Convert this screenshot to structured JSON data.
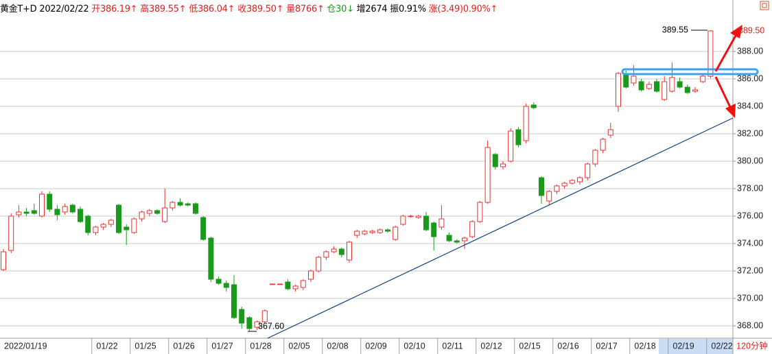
{
  "chart_data": {
    "type": "candlestick",
    "header": [
      {
        "text": "黄金T+D",
        "color": "#000000"
      },
      {
        "text": "2022/02/22",
        "color": "#000000"
      },
      {
        "text": "开386.19↑",
        "color": "#e0201c"
      },
      {
        "text": "高389.55↑",
        "color": "#e0201c"
      },
      {
        "text": "低386.04↑",
        "color": "#e0201c"
      },
      {
        "text": "收389.50↑",
        "color": "#e0201c"
      },
      {
        "text": "量8766↑",
        "color": "#e0201c"
      },
      {
        "text": "仓30↓",
        "color": "#1a9a1a"
      },
      {
        "text": "增2674",
        "color": "#000000"
      },
      {
        "text": "振0.91%",
        "color": "#000000"
      },
      {
        "text": "涨(3.49)0.90%↑",
        "color": "#e0201c"
      }
    ],
    "period": "120分钟",
    "categories": [
      "2022/01/19",
      null,
      null,
      null,
      null,
      null,
      null,
      null,
      null,
      null,
      null,
      null,
      "01/22",
      null,
      null,
      null,
      null,
      "01/25",
      null,
      null,
      null,
      null,
      "01/26",
      null,
      null,
      null,
      null,
      "01/27",
      null,
      null,
      null,
      null,
      "01/28",
      null,
      null,
      null,
      null,
      "02/05",
      null,
      null,
      null,
      null,
      "02/08",
      null,
      null,
      null,
      null,
      "02/09",
      null,
      null,
      null,
      null,
      "02/10",
      null,
      null,
      null,
      null,
      "02/11",
      null,
      null,
      null,
      null,
      "02/12",
      null,
      null,
      null,
      null,
      "02/15",
      null,
      null,
      null,
      null,
      "02/16",
      null,
      null,
      null,
      null,
      "02/17",
      null,
      null,
      null,
      null,
      "02/18",
      null,
      null,
      null,
      null,
      "02/19",
      null,
      null,
      null,
      null,
      "02/22"
    ],
    "open": [
      372.1,
      373.5,
      376.1,
      376.3,
      376.4,
      376.0,
      377.6,
      376.5,
      376.3,
      376.8,
      376.5,
      376.0,
      374.8,
      375.2,
      375.4,
      376.8,
      375.2,
      374.8,
      375.8,
      376.2,
      376.4,
      375.6,
      376.6,
      377.0,
      376.9,
      376.9,
      375.9,
      374.4,
      371.4,
      371.1,
      371.0,
      369.2,
      368.6,
      367.9,
      368.3,
      371.05,
      371.05,
      371.2,
      370.7,
      370.8,
      371.4,
      372.0,
      373.0,
      373.4,
      373.6,
      372.8,
      374.6,
      374.7,
      374.8,
      374.8,
      375.0,
      374.3,
      375.4,
      376.0,
      375.9,
      376.0,
      375.5,
      375.2,
      374.6,
      374.2,
      374.2,
      374.5,
      375.6,
      377.0,
      380.5,
      379.6,
      380.0,
      382.3,
      381.5,
      384.1,
      378.8,
      377.1,
      377.8,
      378.2,
      378.4,
      378.5,
      378.8,
      379.8,
      380.8,
      381.9,
      384.0,
      386.4,
      385.7,
      385.8,
      385.3,
      385.8,
      384.5,
      385.1,
      385.8,
      385.4,
      385.1,
      385.8,
      386.19
    ],
    "high": [
      373.6,
      376.2,
      376.8,
      376.6,
      376.9,
      377.8,
      377.8,
      376.8,
      376.9,
      376.9,
      376.7,
      376.1,
      375.3,
      375.5,
      375.8,
      376.9,
      375.4,
      375.9,
      376.4,
      376.5,
      376.5,
      378.0,
      377.1,
      377.3,
      377.0,
      377.0,
      376.0,
      374.5,
      371.6,
      371.3,
      371.7,
      369.4,
      368.7,
      368.4,
      369.2,
      371.05,
      371.05,
      371.4,
      371.0,
      371.4,
      372.1,
      373.1,
      373.5,
      373.8,
      373.7,
      374.2,
      375.0,
      375.0,
      375.0,
      375.1,
      375.1,
      375.3,
      376.1,
      376.1,
      376.1,
      376.3,
      375.6,
      376.8,
      374.8,
      374.3,
      374.5,
      375.7,
      377.1,
      381.5,
      380.6,
      380.0,
      382.4,
      382.5,
      384.2,
      384.3,
      378.9,
      377.9,
      378.3,
      378.5,
      378.7,
      378.9,
      379.9,
      380.9,
      381.7,
      382.8,
      386.5,
      386.6,
      387.0,
      386.0,
      385.8,
      386.0,
      386.2,
      387.2,
      386.1,
      385.6,
      385.4,
      386.3,
      389.55
    ],
    "low": [
      372.0,
      373.3,
      375.9,
      376.0,
      376.1,
      375.9,
      376.3,
      375.7,
      376.1,
      376.2,
      375.5,
      374.6,
      374.6,
      375.0,
      375.2,
      374.7,
      373.9,
      374.7,
      375.6,
      376.0,
      376.1,
      375.5,
      376.4,
      376.7,
      376.7,
      376.1,
      374.2,
      371.2,
      371.0,
      370.5,
      368.5,
      367.8,
      367.6,
      367.7,
      368.2,
      371.05,
      371.05,
      370.6,
      370.5,
      370.6,
      371.2,
      371.9,
      372.8,
      373.3,
      373.0,
      372.6,
      374.4,
      374.6,
      374.7,
      374.7,
      374.8,
      374.2,
      375.3,
      375.9,
      375.8,
      374.9,
      373.5,
      375.0,
      374.1,
      374.0,
      373.6,
      374.4,
      375.5,
      376.9,
      379.4,
      379.4,
      379.9,
      381.0,
      381.3,
      383.8,
      376.9,
      376.8,
      377.6,
      378.0,
      378.3,
      378.3,
      378.6,
      379.6,
      380.6,
      381.7,
      383.6,
      385.3,
      385.5,
      385.1,
      385.2,
      385.0,
      384.4,
      385.0,
      385.3,
      384.9,
      385.0,
      385.7,
      386.04
    ],
    "close": [
      373.4,
      376.0,
      376.3,
      376.2,
      376.2,
      377.6,
      376.5,
      376.1,
      376.7,
      376.3,
      375.6,
      374.8,
      375.2,
      375.4,
      375.7,
      374.8,
      375.0,
      375.8,
      376.3,
      376.4,
      376.2,
      376.6,
      377.0,
      376.8,
      376.8,
      376.2,
      374.3,
      371.4,
      371.1,
      370.8,
      368.6,
      368.2,
      367.8,
      368.3,
      369.1,
      371.05,
      371.05,
      370.7,
      370.9,
      371.3,
      372.0,
      373.0,
      373.4,
      373.6,
      373.2,
      374.1,
      374.9,
      374.9,
      374.9,
      375.0,
      374.9,
      375.2,
      376.0,
      376.0,
      376.0,
      375.0,
      374.5,
      375.8,
      374.2,
      374.1,
      374.4,
      375.6,
      377.0,
      381.0,
      379.6,
      379.8,
      382.2,
      381.2,
      384.0,
      383.9,
      377.5,
      377.8,
      378.2,
      378.4,
      378.6,
      378.8,
      379.8,
      380.8,
      381.6,
      382.3,
      386.4,
      385.4,
      386.2,
      385.2,
      385.6,
      385.1,
      385.8,
      386.1,
      385.4,
      385.0,
      385.2,
      386.2,
      389.5
    ],
    "up_color": "#e8302f",
    "down_color": "#1a9a1a",
    "ylim": [
      367.1,
      391.75
    ],
    "yticks": [
      {
        "value": 368,
        "label": "368.00"
      },
      {
        "value": 370,
        "label": "370.00"
      },
      {
        "value": 372,
        "label": "372.00"
      },
      {
        "value": 374,
        "label": "374.00"
      },
      {
        "value": 376,
        "label": "376.00"
      },
      {
        "value": 378,
        "label": "378.00"
      },
      {
        "value": 380,
        "label": "380.00"
      },
      {
        "value": 382,
        "label": "382.00"
      },
      {
        "value": 384,
        "label": "384.00"
      },
      {
        "value": 386,
        "label": "386.00"
      },
      {
        "value": 388,
        "label": "388.00"
      }
    ],
    "grid": true,
    "annotations": [
      {
        "value": 389.55,
        "label": "389.55"
      },
      {
        "value": 367.6,
        "label": "367.60"
      }
    ],
    "last_price": {
      "value": 389.5,
      "label": "389.50"
    }
  }
}
